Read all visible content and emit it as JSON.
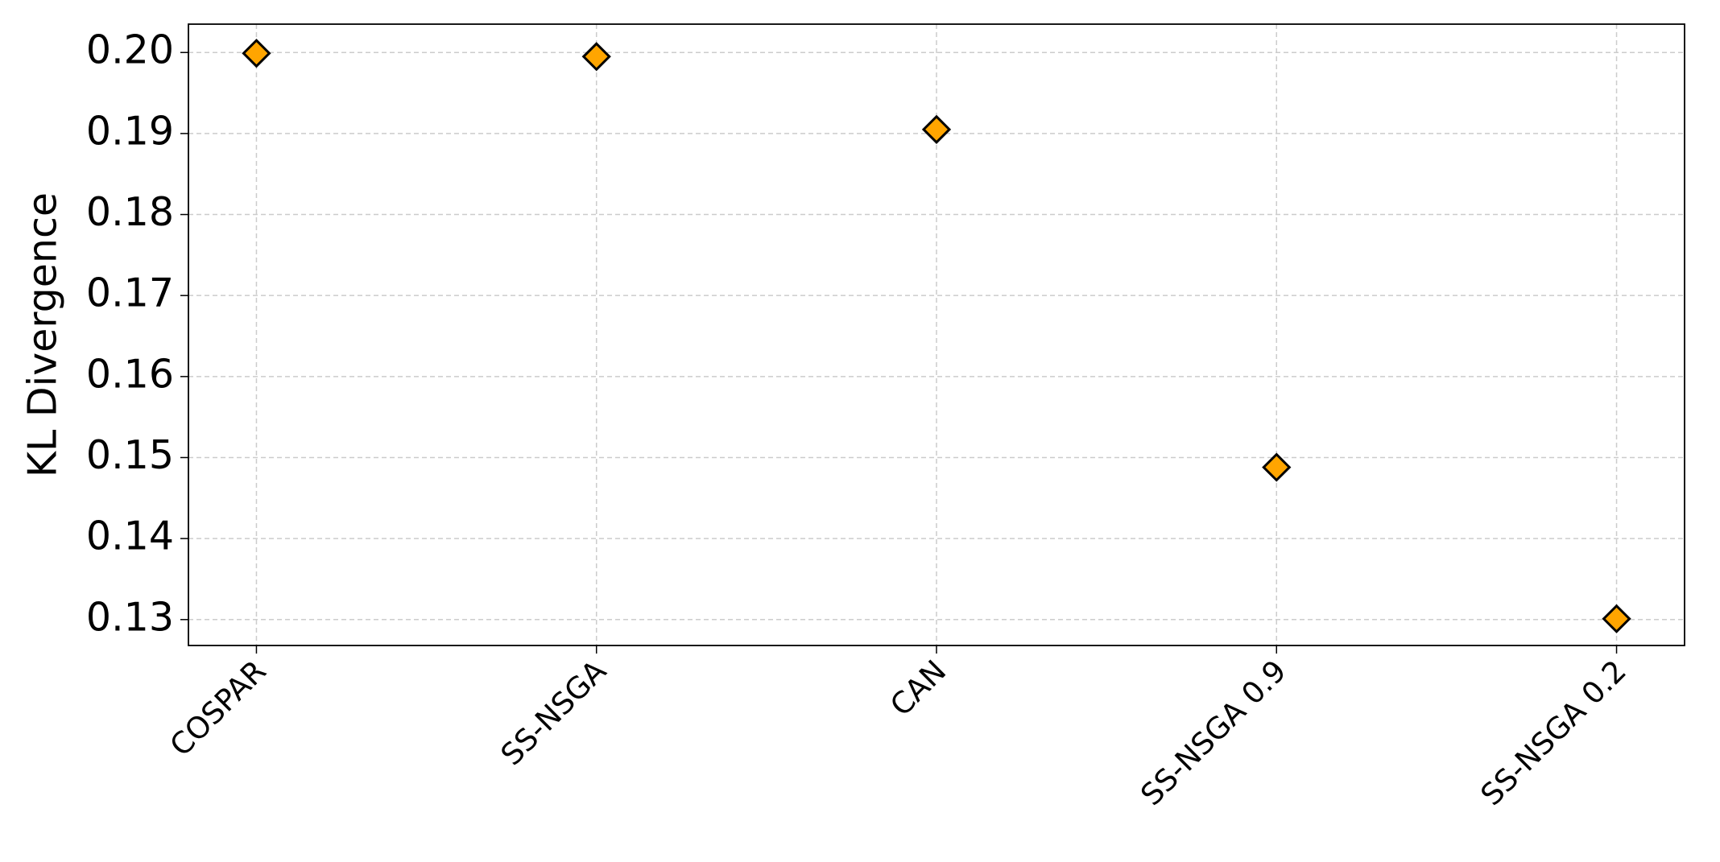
{
  "chart_data": {
    "type": "scatter",
    "y_label": "KL Divergence",
    "categories": [
      "COSPAR",
      "SS-NSGA",
      "CAN",
      "SS-NSGA 0.9",
      "SS-NSGA 0.2"
    ],
    "values": [
      0.1999,
      0.1995,
      0.1905,
      0.1488,
      0.1301
    ],
    "color": "#ffa500",
    "ylim": [
      0.1268,
      0.2035
    ],
    "yticks": [
      0.13,
      0.14,
      0.15,
      0.16,
      0.17,
      0.18,
      0.19,
      {
        "value": 0.2,
        "label": "0.20"
      }
    ],
    "grid": true
  }
}
